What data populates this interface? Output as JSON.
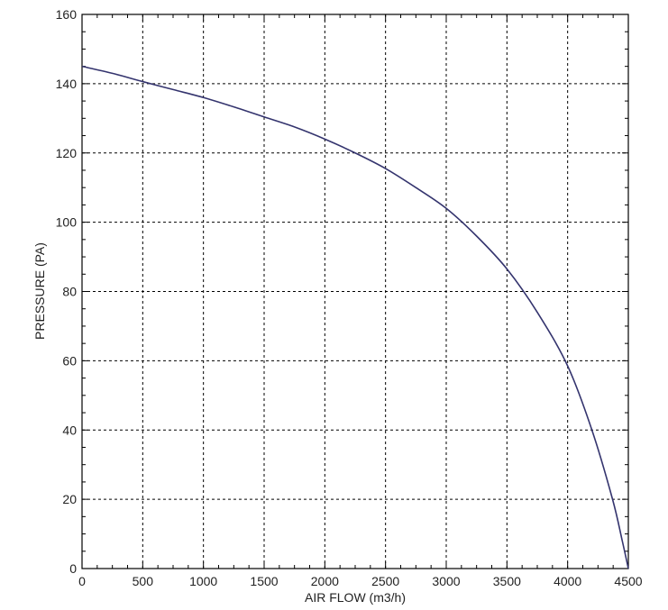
{
  "chart_data": {
    "type": "line",
    "title": "",
    "xlabel": "AIR FLOW (m3/h)",
    "ylabel": "PRESSURE (PA)",
    "xlim": [
      0,
      4500
    ],
    "ylim": [
      0,
      160
    ],
    "xticks": [
      0,
      500,
      1000,
      1500,
      2000,
      2500,
      3000,
      3500,
      4000,
      4500
    ],
    "yticks": [
      0,
      20,
      40,
      60,
      80,
      100,
      120,
      140,
      160
    ],
    "grid": true,
    "grid_style": "dotted",
    "colors": {
      "curve": "#34346e",
      "axis": "#000000",
      "grid": "#000000"
    },
    "series": [
      {
        "x": [
          0,
          250,
          500,
          750,
          1000,
          1250,
          1500,
          1750,
          2000,
          2250,
          2500,
          2750,
          3000,
          3250,
          3500,
          3750,
          4000,
          4200,
          4370,
          4450,
          4500
        ],
        "y": [
          145,
          143,
          140.6,
          138.3,
          136,
          133.3,
          130.4,
          127.5,
          124,
          120,
          115.5,
          110,
          104,
          96,
          86.5,
          74,
          58.5,
          40,
          20,
          8,
          0
        ]
      }
    ]
  }
}
